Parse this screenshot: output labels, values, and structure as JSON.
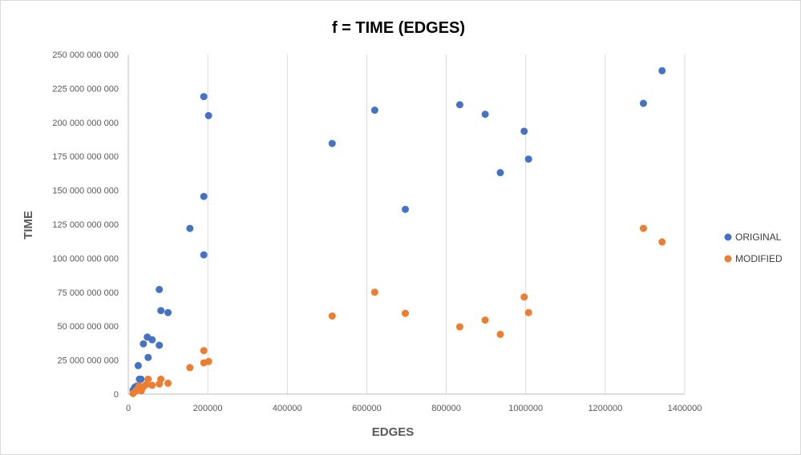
{
  "chart_data": {
    "type": "scatter",
    "title": "f = TIME (EDGES)",
    "xlabel": "EDGES",
    "ylabel": "TIME",
    "xlim": [
      0,
      1400000
    ],
    "ylim": [
      0,
      250000000000
    ],
    "x_ticks": [
      0,
      200000,
      400000,
      600000,
      800000,
      1000000,
      1200000,
      1400000
    ],
    "x_tick_labels": [
      "0",
      "200000",
      "400000",
      "600000",
      "800000",
      "1000000",
      "1200000",
      "1400000"
    ],
    "y_ticks": [
      0,
      25000000000,
      50000000000,
      75000000000,
      100000000000,
      125000000000,
      150000000000,
      175000000000,
      200000000000,
      225000000000,
      250000000000
    ],
    "y_tick_labels": [
      "0",
      "25 000 000 000",
      "50 000 000 000",
      "75 000 000 000",
      "100 000 000 000",
      "125 000 000 000",
      "150 000 000 000",
      "175 000 000 000",
      "200 000 000 000",
      "225 000 000 000",
      "250 000 000 000"
    ],
    "grid": "vertical",
    "legend_position": "right",
    "series": [
      {
        "name": "ORIGINAL",
        "color": "#4472C4",
        "points": [
          [
            12000,
            3000000000
          ],
          [
            16000,
            5000000000
          ],
          [
            22000,
            6000000000
          ],
          [
            25000,
            21000000000
          ],
          [
            28000,
            11000000000
          ],
          [
            32000,
            11000000000
          ],
          [
            38000,
            37000000000
          ],
          [
            48000,
            42000000000
          ],
          [
            50000,
            27000000000
          ],
          [
            60000,
            40000000000
          ],
          [
            78000,
            77000000000
          ],
          [
            78000,
            36000000000
          ],
          [
            82000,
            61500000000
          ],
          [
            100000,
            60000000000
          ],
          [
            155000,
            122000000000
          ],
          [
            190000,
            219000000000
          ],
          [
            190000,
            145500000000
          ],
          [
            190000,
            102500000000
          ],
          [
            202000,
            205000000000
          ],
          [
            513000,
            184500000000
          ],
          [
            620000,
            209000000000
          ],
          [
            697000,
            136000000000
          ],
          [
            834000,
            213000000000
          ],
          [
            898000,
            206000000000
          ],
          [
            936000,
            163000000000
          ],
          [
            996000,
            193500000000
          ],
          [
            1007000,
            173000000000
          ],
          [
            1296000,
            214000000000
          ],
          [
            1343000,
            238000000000
          ]
        ]
      },
      {
        "name": "MODIFIED",
        "color": "#ED7D31",
        "points": [
          [
            12000,
            500000000
          ],
          [
            18000,
            2000000000
          ],
          [
            24000,
            4000000000
          ],
          [
            28000,
            6000000000
          ],
          [
            33000,
            2500000000
          ],
          [
            38000,
            5500000000
          ],
          [
            45000,
            7000000000
          ],
          [
            50000,
            11000000000
          ],
          [
            60000,
            6500000000
          ],
          [
            78000,
            7500000000
          ],
          [
            82000,
            11000000000
          ],
          [
            100000,
            8000000000
          ],
          [
            155000,
            19500000000
          ],
          [
            190000,
            32000000000
          ],
          [
            190000,
            23000000000
          ],
          [
            202000,
            24000000000
          ],
          [
            513000,
            57500000000
          ],
          [
            620000,
            75000000000
          ],
          [
            697000,
            59500000000
          ],
          [
            834000,
            49500000000
          ],
          [
            898000,
            54500000000
          ],
          [
            936000,
            44000000000
          ],
          [
            996000,
            71500000000
          ],
          [
            1007000,
            60000000000
          ],
          [
            1296000,
            122000000000
          ],
          [
            1343000,
            112000000000
          ]
        ]
      }
    ]
  }
}
